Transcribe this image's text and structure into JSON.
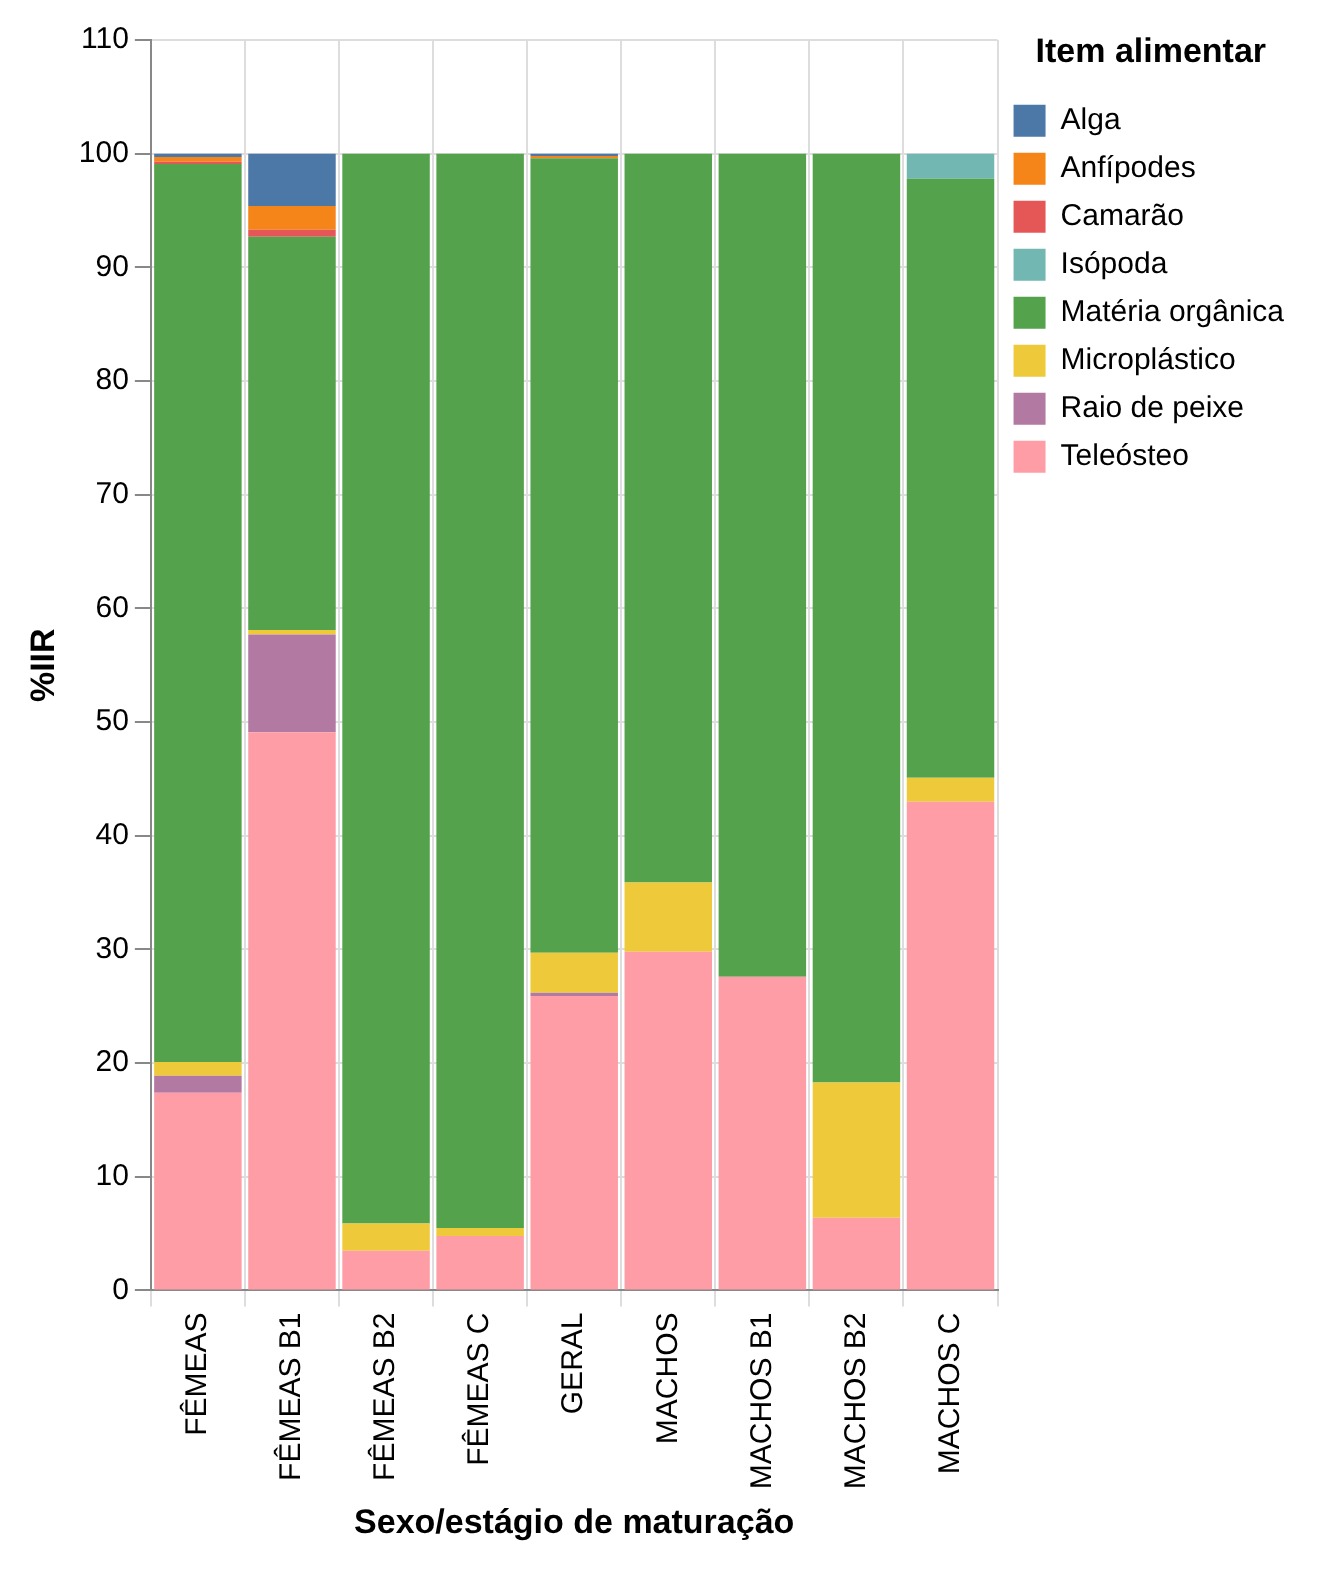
{
  "chart_data": {
    "type": "bar",
    "stacked": true,
    "xlabel": "Sexo/estágio de maturação",
    "ylabel": "%IIR",
    "legend_title": "Item alimentar",
    "legend": "top right",
    "grid": true,
    "categories": [
      "FÊMEAS",
      "FÊMEAS B1",
      "FÊMEAS B2",
      "FÊMEAS C",
      "GERAL",
      "MACHOS",
      "MACHOS B1",
      "MACHOS B2",
      "MACHOS C"
    ],
    "ylim": [
      0,
      110
    ],
    "yticks": [
      0,
      10,
      20,
      30,
      40,
      50,
      60,
      70,
      80,
      90,
      100,
      110
    ],
    "series": [
      {
        "name": "Teleósteo",
        "color": "#ff9da6",
        "values": [
          17.4,
          49.1,
          3.5,
          4.8,
          25.9,
          29.8,
          27.6,
          6.4,
          43.0
        ]
      },
      {
        "name": "Raio de peixe",
        "color": "#b279a2",
        "values": [
          1.5,
          8.6,
          0,
          0,
          0.3,
          0,
          0,
          0,
          0
        ]
      },
      {
        "name": "Microplástico",
        "color": "#eeca3b",
        "values": [
          1.2,
          0.4,
          2.4,
          0.7,
          3.5,
          6.1,
          0,
          11.9,
          2.1
        ]
      },
      {
        "name": "Matéria orgânica",
        "color": "#54a24b",
        "values": [
          79.0,
          34.6,
          94.1,
          94.5,
          69.9,
          64.1,
          72.4,
          81.7,
          52.7
        ]
      },
      {
        "name": "Isópoda",
        "color": "#72b7b2",
        "values": [
          0,
          0,
          0,
          0,
          0,
          0,
          0,
          0,
          2.2
        ]
      },
      {
        "name": "Camarão",
        "color": "#e45756",
        "values": [
          0.2,
          0.6,
          0,
          0,
          0,
          0,
          0,
          0,
          0
        ]
      },
      {
        "name": "Anfípodes",
        "color": "#f58518",
        "values": [
          0.4,
          2.1,
          0,
          0,
          0.2,
          0,
          0,
          0,
          0
        ]
      },
      {
        "name": "Alga",
        "color": "#4c78a8",
        "values": [
          0.3,
          4.6,
          0,
          0,
          0.2,
          0,
          0,
          0,
          0
        ]
      }
    ]
  }
}
